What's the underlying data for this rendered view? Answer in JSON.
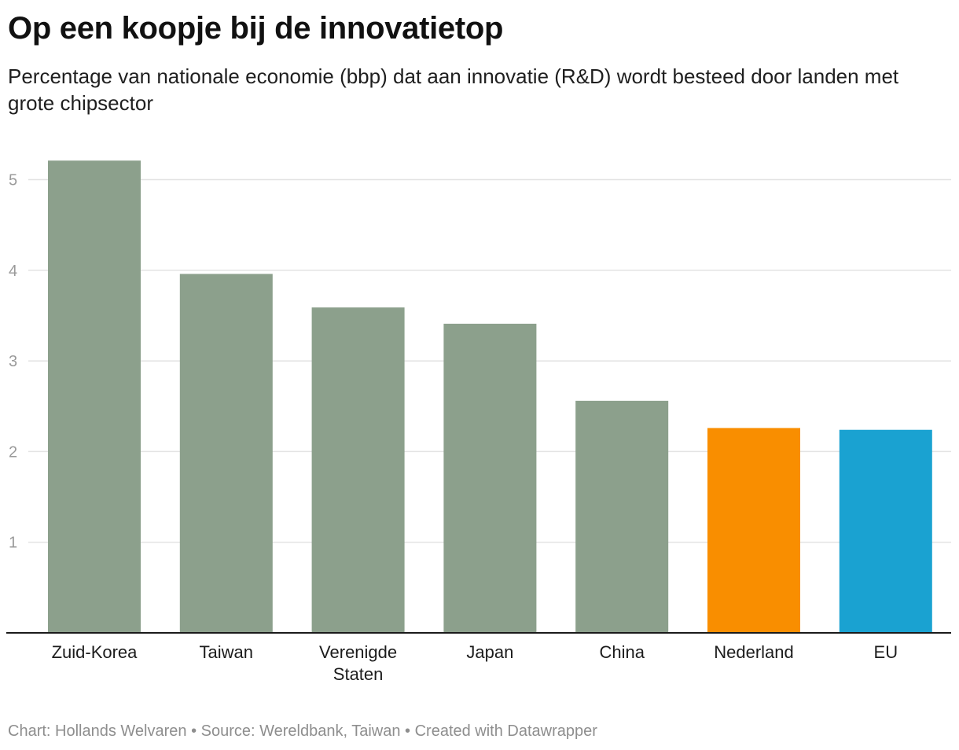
{
  "title": "Op een koopje bij de innovatietop",
  "subtitle": "Percentage van nationale economie (bbp) dat aan innovatie (R&D) wordt besteed door landen met grote chipsector",
  "footer": "Chart: Hollands Welvaren • Source: Wereldbank, Taiwan • Created with Datawrapper",
  "chart_data": {
    "type": "bar",
    "categories": [
      "Zuid-Korea",
      "Taiwan",
      "Verenigde Staten",
      "Japan",
      "China",
      "Nederland",
      "EU"
    ],
    "category_lines": [
      [
        "Zuid-Korea"
      ],
      [
        "Taiwan"
      ],
      [
        "Verenigde",
        "Staten"
      ],
      [
        "Japan"
      ],
      [
        "China"
      ],
      [
        "Nederland"
      ],
      [
        "EU"
      ]
    ],
    "values": [
      5.21,
      3.96,
      3.59,
      3.41,
      2.56,
      2.26,
      2.24
    ],
    "colors": [
      "#8ca08c",
      "#8ca08c",
      "#8ca08c",
      "#8ca08c",
      "#8ca08c",
      "#f98e00",
      "#1aa2d1"
    ],
    "yticks": [
      1,
      2,
      3,
      4,
      5
    ],
    "ylim": [
      0,
      5.42
    ],
    "grid": true,
    "title": "Op een koopje bij de innovatietop",
    "xlabel": "",
    "ylabel": ""
  }
}
